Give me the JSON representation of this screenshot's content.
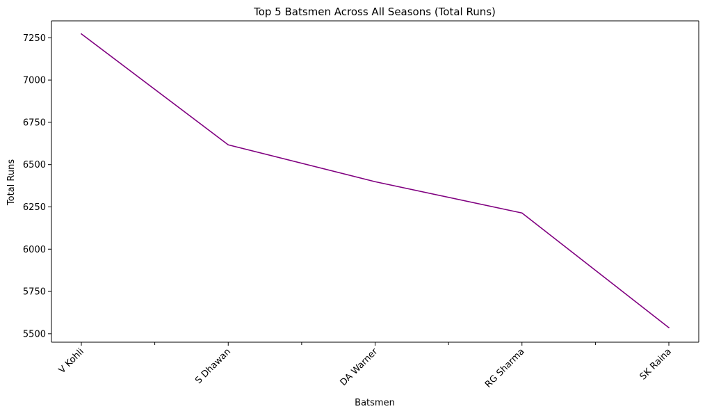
{
  "chart_data": {
    "type": "line",
    "title": "Top 5 Batsmen Across All Seasons (Total Runs)",
    "xlabel": "Batsmen",
    "ylabel": "Total Runs",
    "categories": [
      "V Kohli",
      "S Dhawan",
      "DA Warner",
      "RG Sharma",
      "SK Raina"
    ],
    "series": [
      {
        "values": [
          7273,
          6617,
          6399,
          6214,
          5536
        ],
        "color": "#800080"
      }
    ],
    "ylim": [
      5450,
      7350
    ],
    "yticks": [
      5500,
      5750,
      6000,
      6250,
      6500,
      6750,
      7000,
      7250
    ],
    "xtick_rotation_deg": 45,
    "minor_x_ticks": true,
    "grid": false,
    "legend": "none"
  }
}
